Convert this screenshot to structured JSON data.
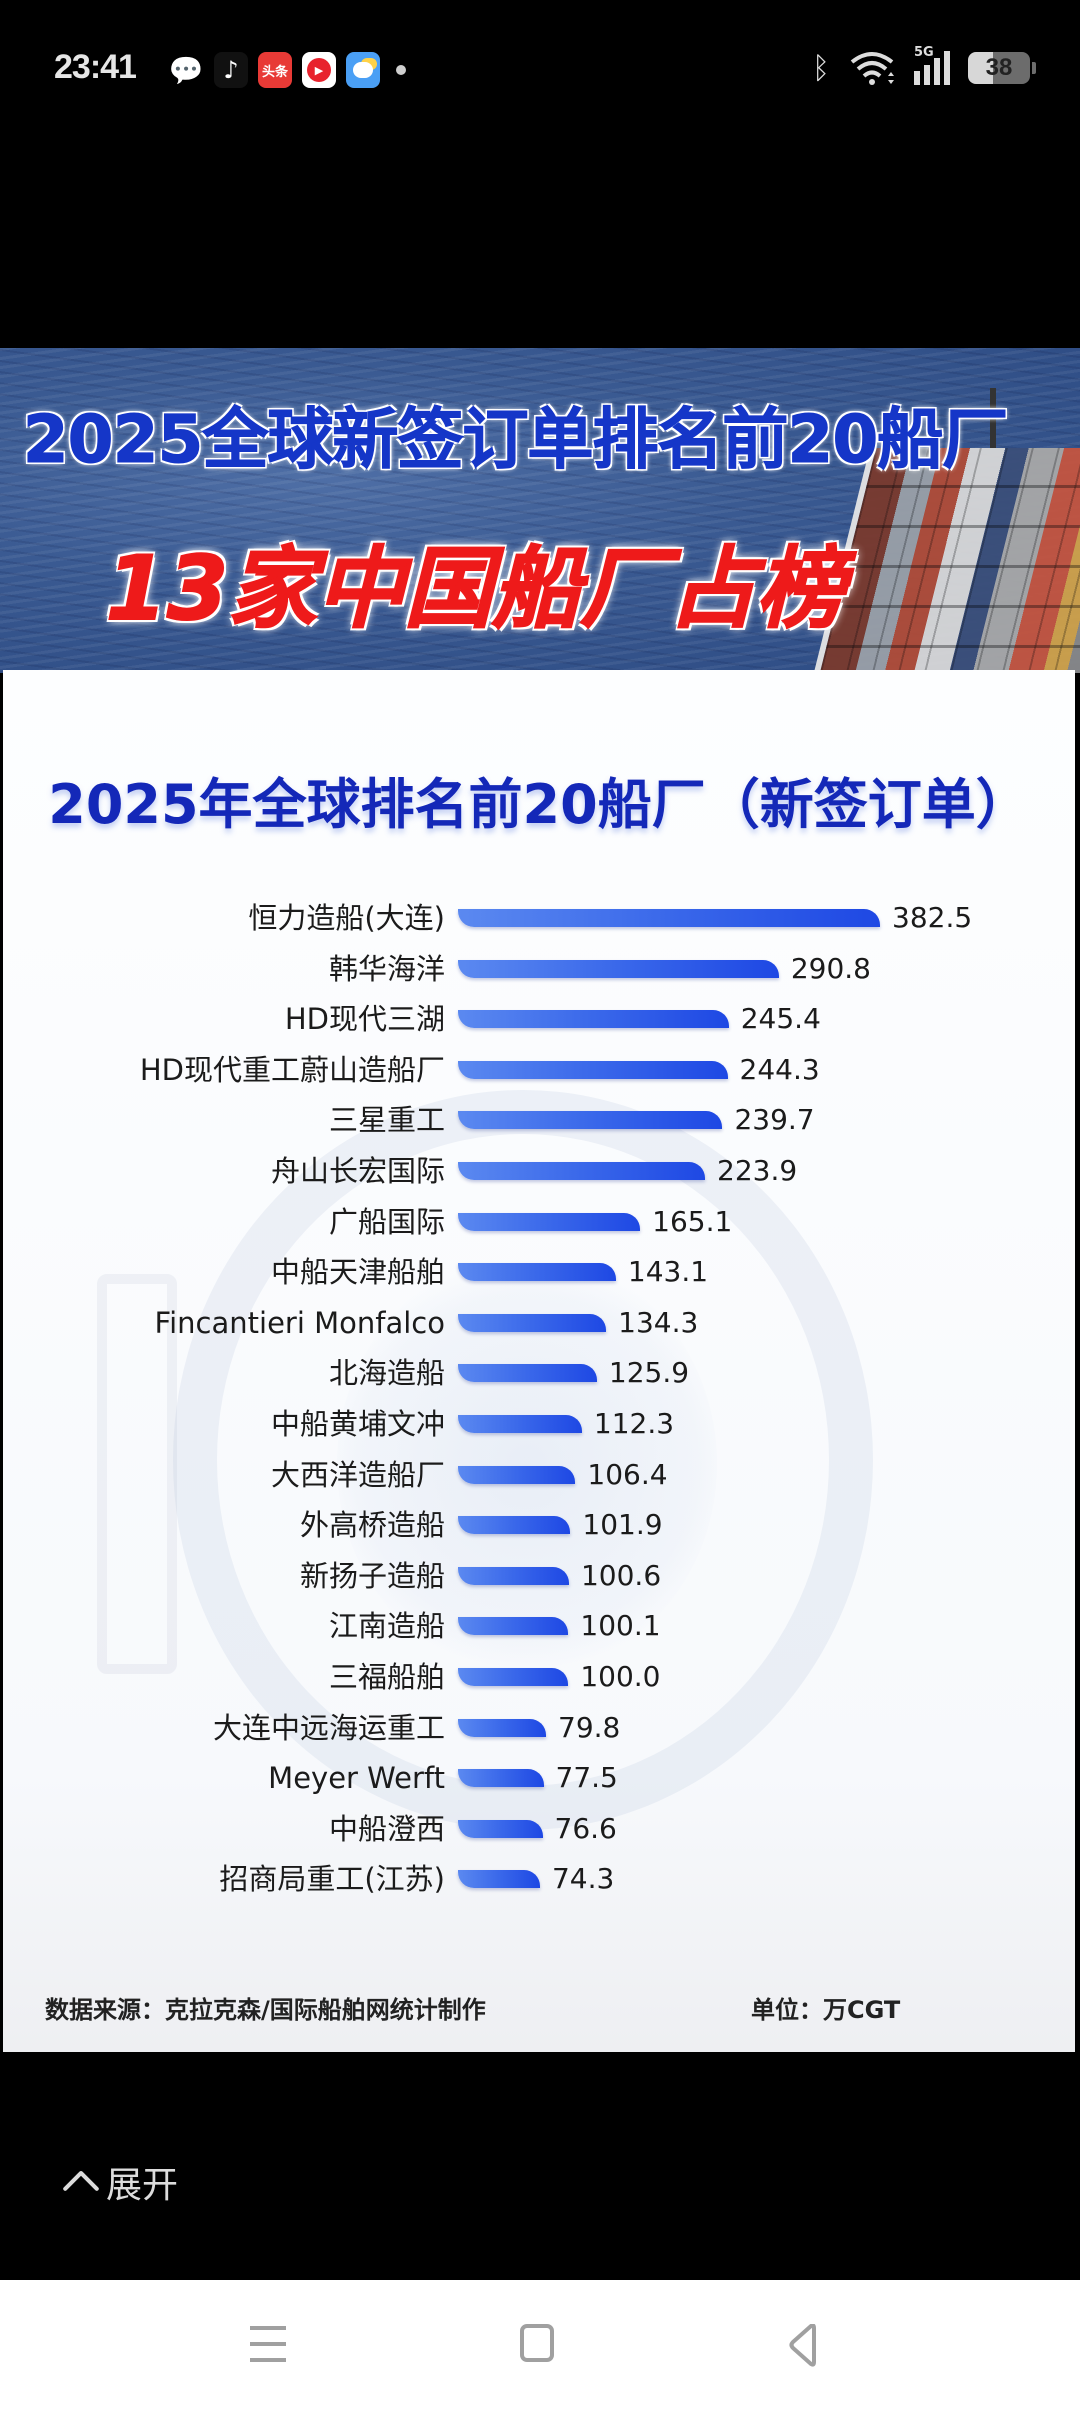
{
  "status_bar": {
    "time": "23:41",
    "notification_icons": [
      "wechat-icon",
      "tiktok-icon",
      "toutiao-icon",
      "video-icon",
      "weather-icon",
      "more-dot"
    ],
    "toutiao_label": "头条",
    "network": "5G",
    "battery": "38"
  },
  "post": {
    "banner_title": "2025全球新签订单排名前20船厂",
    "banner_subtitle": "13家中国船厂占榜",
    "card_title": "2025年全球排名前20船厂（新签订单）",
    "source": "数据来源：克拉克森/国际船舶网统计制作",
    "unit": "单位：万CGT",
    "colors": {
      "bar_start": "#5b89f0",
      "bar_end": "#1e48e4",
      "title_blue": "#1428b8",
      "subtitle_red": "#ee1a1a"
    }
  },
  "chart_data": {
    "type": "bar",
    "orientation": "horizontal",
    "title": "2025年全球排名前20船厂（新签订单）",
    "xlabel": "",
    "ylabel": "",
    "unit": "万CGT",
    "source": "数据来源：克拉克森/国际船舶网统计制作",
    "grid": false,
    "legend": null,
    "xlim": [
      0,
      382.5
    ],
    "categories": [
      "恒力造船(大连)",
      "韩华海洋",
      "HD现代三湖",
      "HD现代重工蔚山造船厂",
      "三星重工",
      "舟山长宏国际",
      "广船国际",
      "中船天津船舶",
      "Fincantieri Monfalco",
      "北海造船",
      "中船黄埔文冲",
      "大西洋造船厂",
      "外高桥造船",
      "新扬子造船",
      "江南造船",
      "三福船舶",
      "大连中远海运重工",
      "Meyer Werft",
      "中船澄西",
      "招商局重工(江苏)"
    ],
    "values": [
      382.5,
      290.8,
      245.4,
      244.3,
      239.7,
      223.9,
      165.1,
      143.1,
      134.3,
      125.9,
      112.3,
      106.4,
      101.9,
      100.6,
      100.1,
      100.0,
      79.8,
      77.5,
      76.6,
      74.3
    ],
    "value_labels": [
      "382.5",
      "290.8",
      "245.4",
      "244.3",
      "239.7",
      "223.9",
      "165.1",
      "143.1",
      "134.3",
      "125.9",
      "112.3",
      "106.4",
      "101.9",
      "100.6",
      "100.1",
      "100.0",
      "79.8",
      "77.5",
      "76.6",
      "74.3"
    ]
  },
  "expand": {
    "label": "展开"
  },
  "nav_bar": {
    "buttons": [
      "menu",
      "home",
      "back"
    ]
  }
}
